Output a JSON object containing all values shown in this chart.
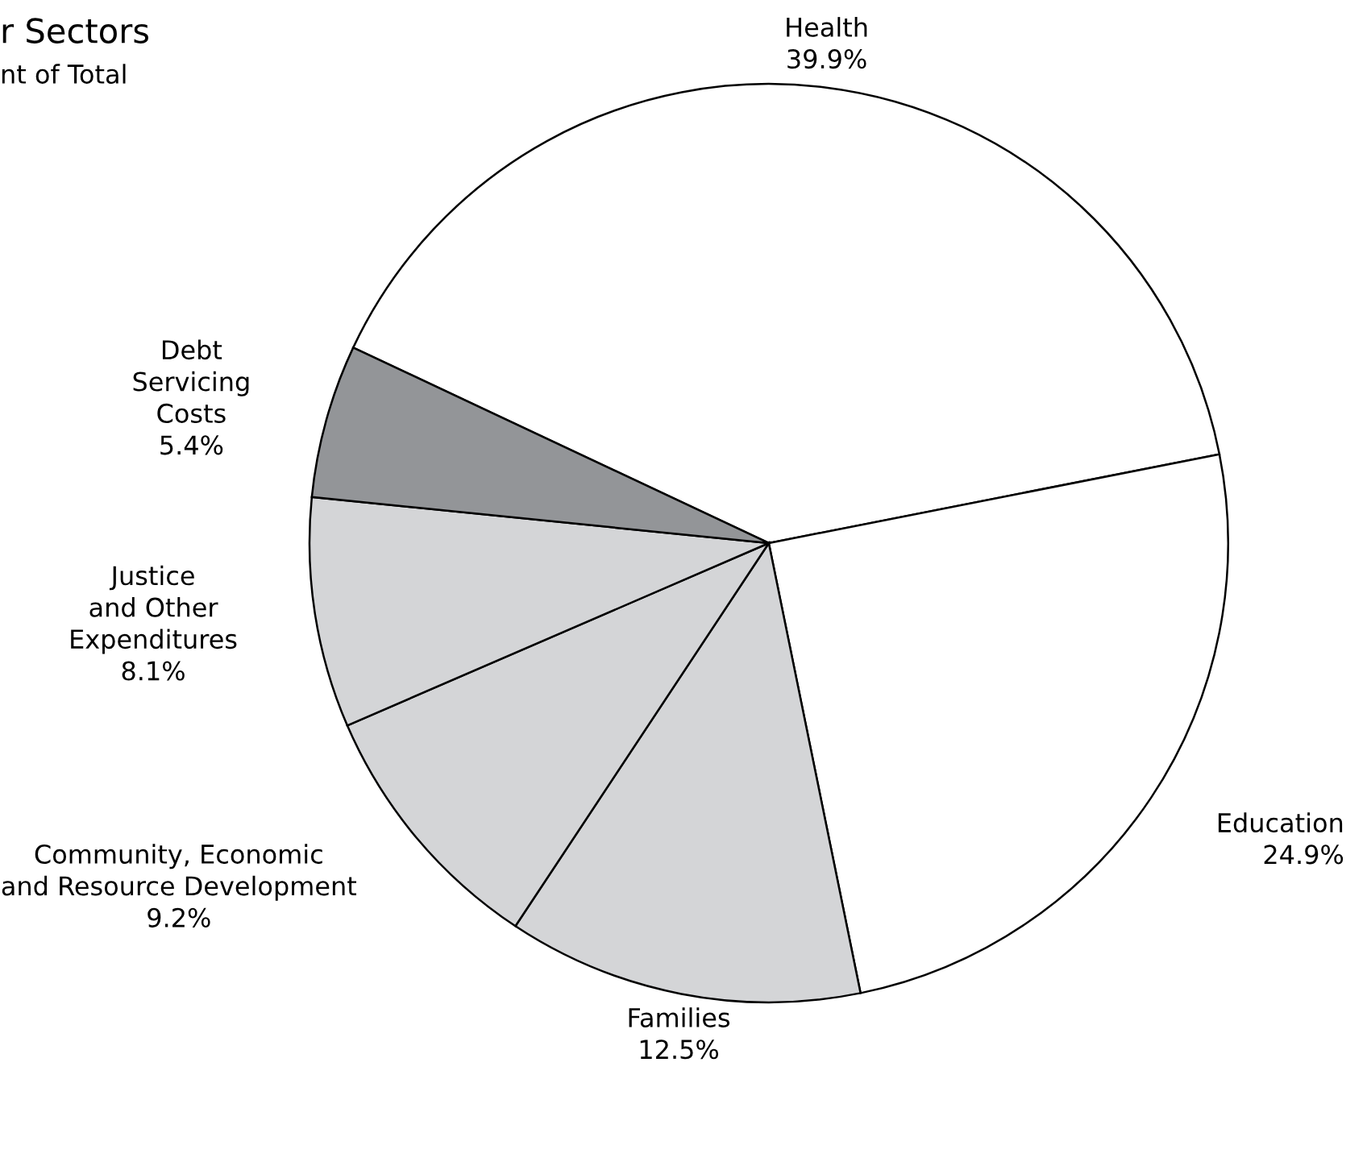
{
  "chart_data": {
    "type": "pie",
    "title": "r Sectors",
    "subtitle": "nt of Total",
    "categories": [
      "Health",
      "Education",
      "Families",
      "Community, Economic\nand Resource Development",
      "Justice\nand Other\nExpenditures",
      "Debt\nServicing\nCosts"
    ],
    "values": [
      39.9,
      24.9,
      12.5,
      9.2,
      8.1,
      5.4
    ],
    "value_labels": [
      "39.9%",
      "24.9%",
      "12.5%",
      "9.2%",
      "8.1%",
      "5.4%"
    ],
    "colors": [
      "#ffffff",
      "#ffffff",
      "#d4d5d7",
      "#d4d5d7",
      "#d4d5d7",
      "#939598"
    ],
    "legend": false
  }
}
